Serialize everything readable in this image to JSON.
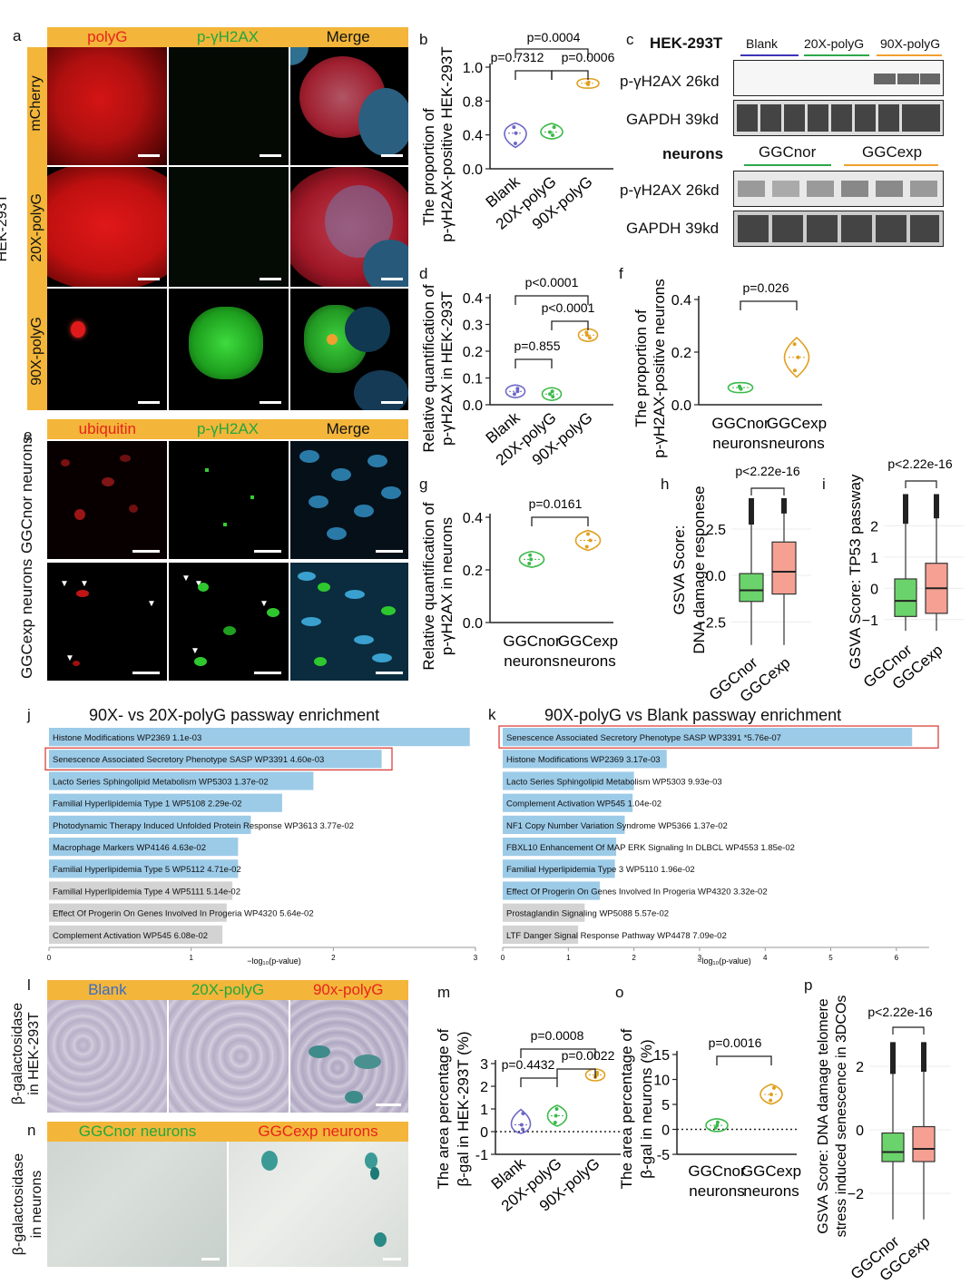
{
  "panels": {
    "a": {
      "letter": "a",
      "cols": [
        "polyG",
        "p-γH2AX",
        "Merge"
      ],
      "rows": [
        "mCherry",
        "20X-polyG",
        "90X-polyG"
      ],
      "side": "HEK-293T"
    },
    "b": {
      "letter": "b",
      "ylabel1": "The proportion of",
      "ylabel2": "p-γH2AX-positive HEK-293T",
      "p1": "p=0.0004",
      "p2": "p=0.7312",
      "p3": "p=0.0006"
    },
    "c": {
      "letter": "c",
      "cell1": "HEK-293T",
      "groups1": [
        "Blank",
        "20X-polyG",
        "90X-polyG"
      ],
      "row1a": "p-γH2AX 26kd",
      "row1b": "GAPDH 39kd",
      "cell2": "neurons",
      "groups2": [
        "GGCnor",
        "GGCexp"
      ],
      "row2a": "p-γH2AX 26kd",
      "row2b": "GAPDH 39kd"
    },
    "d": {
      "letter": "d",
      "ylabel1": "Relative quantification of",
      "ylabel2": "p-γH2AX in HEK-293T",
      "p1": "p<0.0001",
      "p2": "p<0.0001",
      "p3": "p=0.855"
    },
    "e": {
      "letter": "e",
      "cols": [
        "ubiquitin",
        "p-γH2AX",
        "Merge"
      ],
      "rows": [
        "GGCnor neurons",
        "GGCexp neurons"
      ]
    },
    "f": {
      "letter": "f",
      "ylabel1": "The proportion of",
      "ylabel2": "p-γH2AX-positive neurons",
      "p1": "p=0.026"
    },
    "g": {
      "letter": "g",
      "ylabel1": "Relative quantification of",
      "ylabel2": "p-γH2AX in neurons",
      "p1": "p=0.0161"
    },
    "h": {
      "letter": "h",
      "ylabel1": "GSVA Score:",
      "ylabel2": "DNA damage responese",
      "p1": "p<2.22e-16"
    },
    "i": {
      "letter": "i",
      "ylabel1": "GSVA Score: TP53 passway",
      "p1": "p<2.22e-16"
    },
    "j": {
      "letter": "j",
      "title": "90X- vs 20X-polyG passway enrichment",
      "xlabel": "−log₁₀(p-value)"
    },
    "k": {
      "letter": "k",
      "title": "90X-polyG vs Blank passway enrichment",
      "xlabel": "−log₁₀(p-value)"
    },
    "l": {
      "letter": "l",
      "cols": [
        "Blank",
        "20X-polyG",
        "90x-polyG"
      ],
      "side1": "β-galactosidase",
      "side2": "in HEK-293T"
    },
    "m": {
      "letter": "m",
      "ylabel1": "The area percentage of",
      "ylabel2": "β-gal in HEK-293T (%)",
      "p1": "p=0.0008",
      "p2": "p=0.4432",
      "p3": "p=0.0022"
    },
    "n": {
      "letter": "n",
      "cols": [
        "GGCnor neurons",
        "GGCexp neurons"
      ],
      "side1": "β-galactosidase",
      "side2": "in neurons"
    },
    "o": {
      "letter": "o",
      "ylabel1": "The area percentage of",
      "ylabel2": "β-gal in neurons (%)",
      "p1": "p=0.0016"
    },
    "p": {
      "letter": "p",
      "ylabel1": "GSVA Score: DNA damage telomere",
      "ylabel2": "stress induced senescence in 3DCOs",
      "p1": "p<2.22e-16"
    }
  },
  "colors": {
    "header": "#f3b63a",
    "blank": "#6d67c7",
    "x20": "#3cb94a",
    "x90": "#e0a020",
    "green_box": "#6bd36b",
    "salmon_box": "#f5a093",
    "bar_blue": "#9ccbe8",
    "bar_grey": "#d3d3d3"
  },
  "chart_data": [
    {
      "id": "b",
      "type": "violin",
      "categories": [
        "Blank",
        "20X-polyG",
        "90X-polyG"
      ],
      "ylim": [
        0,
        1.0
      ],
      "yticks": [
        "0.0",
        "0.4",
        "0.8",
        "1.0"
      ],
      "series": [
        {
          "values": [
            0.25,
            0.35,
            0.41
          ]
        },
        {
          "values": [
            0.33,
            0.36,
            0.41
          ]
        },
        {
          "values": [
            0.83,
            0.84,
            0.85
          ]
        }
      ]
    },
    {
      "id": "d",
      "type": "violin",
      "categories": [
        "Blank",
        "20X-polyG",
        "90X-polyG"
      ],
      "ylim": [
        0,
        0.4
      ],
      "yticks": [
        "0.0",
        "0.1",
        "0.2",
        "0.3",
        "0.4"
      ],
      "series": [
        {
          "values": [
            0.04,
            0.05,
            0.06
          ]
        },
        {
          "values": [
            0.03,
            0.04,
            0.05
          ]
        },
        {
          "values": [
            0.25,
            0.26,
            0.27
          ]
        }
      ]
    },
    {
      "id": "f",
      "type": "violin",
      "categories": [
        "GGCnor neurons",
        "GGCexp neurons"
      ],
      "ylim": [
        0,
        0.4
      ],
      "yticks": [
        "0.0",
        "0.2",
        "0.4"
      ],
      "series": [
        {
          "values": [
            0.06,
            0.065,
            0.07
          ]
        },
        {
          "values": [
            0.13,
            0.18,
            0.23
          ]
        }
      ]
    },
    {
      "id": "g",
      "type": "violin",
      "categories": [
        "GGCnor neurons",
        "GGCexp neurons"
      ],
      "ylim": [
        0,
        0.5
      ],
      "yticks": [
        "0.0",
        "0.2",
        "0.4"
      ],
      "series": [
        {
          "values": [
            0.28,
            0.3,
            0.32
          ]
        },
        {
          "values": [
            0.36,
            0.39,
            0.42
          ]
        }
      ]
    },
    {
      "id": "h",
      "type": "box",
      "categories": [
        "GGCnor",
        "GGCexp"
      ],
      "ylim": [
        -4,
        4.5
      ],
      "yticks": [
        "−2.5",
        "0.0",
        "2.5"
      ],
      "series": [
        {
          "values": {
            "q1": -1.4,
            "median": -0.8,
            "q3": 0.1
          }
        },
        {
          "values": {
            "q1": -1.0,
            "median": 0.2,
            "q3": 1.8
          }
        }
      ]
    },
    {
      "id": "i",
      "type": "box",
      "categories": [
        "GGCnor",
        "GGCexp"
      ],
      "ylim": [
        -1.5,
        3.2
      ],
      "yticks": [
        "−1",
        "0",
        "1",
        "2"
      ],
      "series": [
        {
          "values": {
            "q1": -0.9,
            "median": -0.4,
            "q3": 0.3
          }
        },
        {
          "values": {
            "q1": -0.8,
            "median": 0.0,
            "q3": 0.8
          }
        }
      ]
    },
    {
      "id": "j",
      "type": "bar",
      "xlim": [
        0,
        3
      ],
      "xticks": [
        "0",
        "1",
        "2",
        "3"
      ],
      "categories": [
        "Histone Modifications WP2369  1.1e-03",
        "Senescence Associated Secretory Phenotype SASP WP3391  4.60e-03",
        "Lacto Series Sphingolipid Metabolism WP5303  1.37e-02",
        "Familial Hyperlipidemia Type 1 WP5108  2.29e-02",
        "Photodynamic Therapy Induced Unfolded Protein Response WP3613  3.77e-02",
        "Macrophage Markers WP4146  4.63e-02",
        "Familial Hyperlipidemia Type 5 WP5112  4.71e-02",
        "Familial Hyperlipidemia Type 4 WP5111  5.14e-02",
        "Effect Of Progerin On Genes Involved In Progeria WP4320  5.64e-02",
        "Complement Activation WP545  6.08e-02"
      ],
      "values": [
        2.96,
        2.34,
        1.86,
        1.64,
        1.42,
        1.33,
        1.33,
        1.29,
        1.25,
        1.22
      ]
    },
    {
      "id": "k",
      "type": "bar",
      "xlim": [
        0,
        6.5
      ],
      "xticks": [
        "0",
        "1",
        "2",
        "3",
        "4",
        "5",
        "6"
      ],
      "categories": [
        "Senescence Associated Secretory Phenotype SASP WP3391  *5.76e-07",
        "Histone Modifications WP2369  3.17e-03",
        "Lacto Series Sphingolipid Metabolism WP5303  9.93e-03",
        "Complement Activation WP545  1.04e-02",
        "NF1 Copy Number Variation Syndrome WP5366  1.37e-02",
        "FBXL10 Enhancement Of MAP ERK Signaling In DLBCL WP4553  1.85e-02",
        "Familial Hyperlipidemia Type 3 WP5110  1.96e-02",
        "Effect Of Progerin On Genes Involved In Progeria WP4320  3.32e-02",
        "Prostaglandin Signaling WP5088  5.57e-02",
        "LTF Danger Signal Response Pathway WP4478  7.09e-02"
      ],
      "values": [
        6.24,
        2.5,
        2.0,
        1.98,
        1.86,
        1.73,
        1.71,
        1.48,
        1.25,
        1.15
      ]
    },
    {
      "id": "m",
      "type": "violin",
      "categories": [
        "Blank",
        "20X-polyG",
        "90X-polyG"
      ],
      "ylim": [
        -1,
        3
      ],
      "yticks": [
        "-1",
        "0",
        "1",
        "2",
        "3"
      ],
      "series": [
        {
          "values": [
            0.1,
            0.3,
            0.8
          ]
        },
        {
          "values": [
            0.4,
            0.7,
            1.0
          ]
        },
        {
          "values": [
            2.4,
            2.5,
            2.6
          ]
        }
      ]
    },
    {
      "id": "o",
      "type": "violin",
      "categories": [
        "GGCnor neurons",
        "GGCexp neurons"
      ],
      "ylim": [
        -5,
        15
      ],
      "yticks": [
        "-5",
        "0",
        "5",
        "10",
        "15"
      ],
      "series": [
        {
          "values": [
            0.3,
            0.8,
            1.4
          ]
        },
        {
          "values": [
            5.8,
            7,
            8.3
          ]
        }
      ]
    },
    {
      "id": "p",
      "type": "box",
      "categories": [
        "GGCnor",
        "GGCexp"
      ],
      "ylim": [
        -3,
        3
      ],
      "yticks": [
        "−2",
        "0",
        "2"
      ],
      "series": [
        {
          "values": {
            "q1": -1.0,
            "median": -0.7,
            "q3": -0.1
          }
        },
        {
          "values": {
            "q1": -1.0,
            "median": -0.6,
            "q3": 0.1
          }
        }
      ]
    }
  ]
}
